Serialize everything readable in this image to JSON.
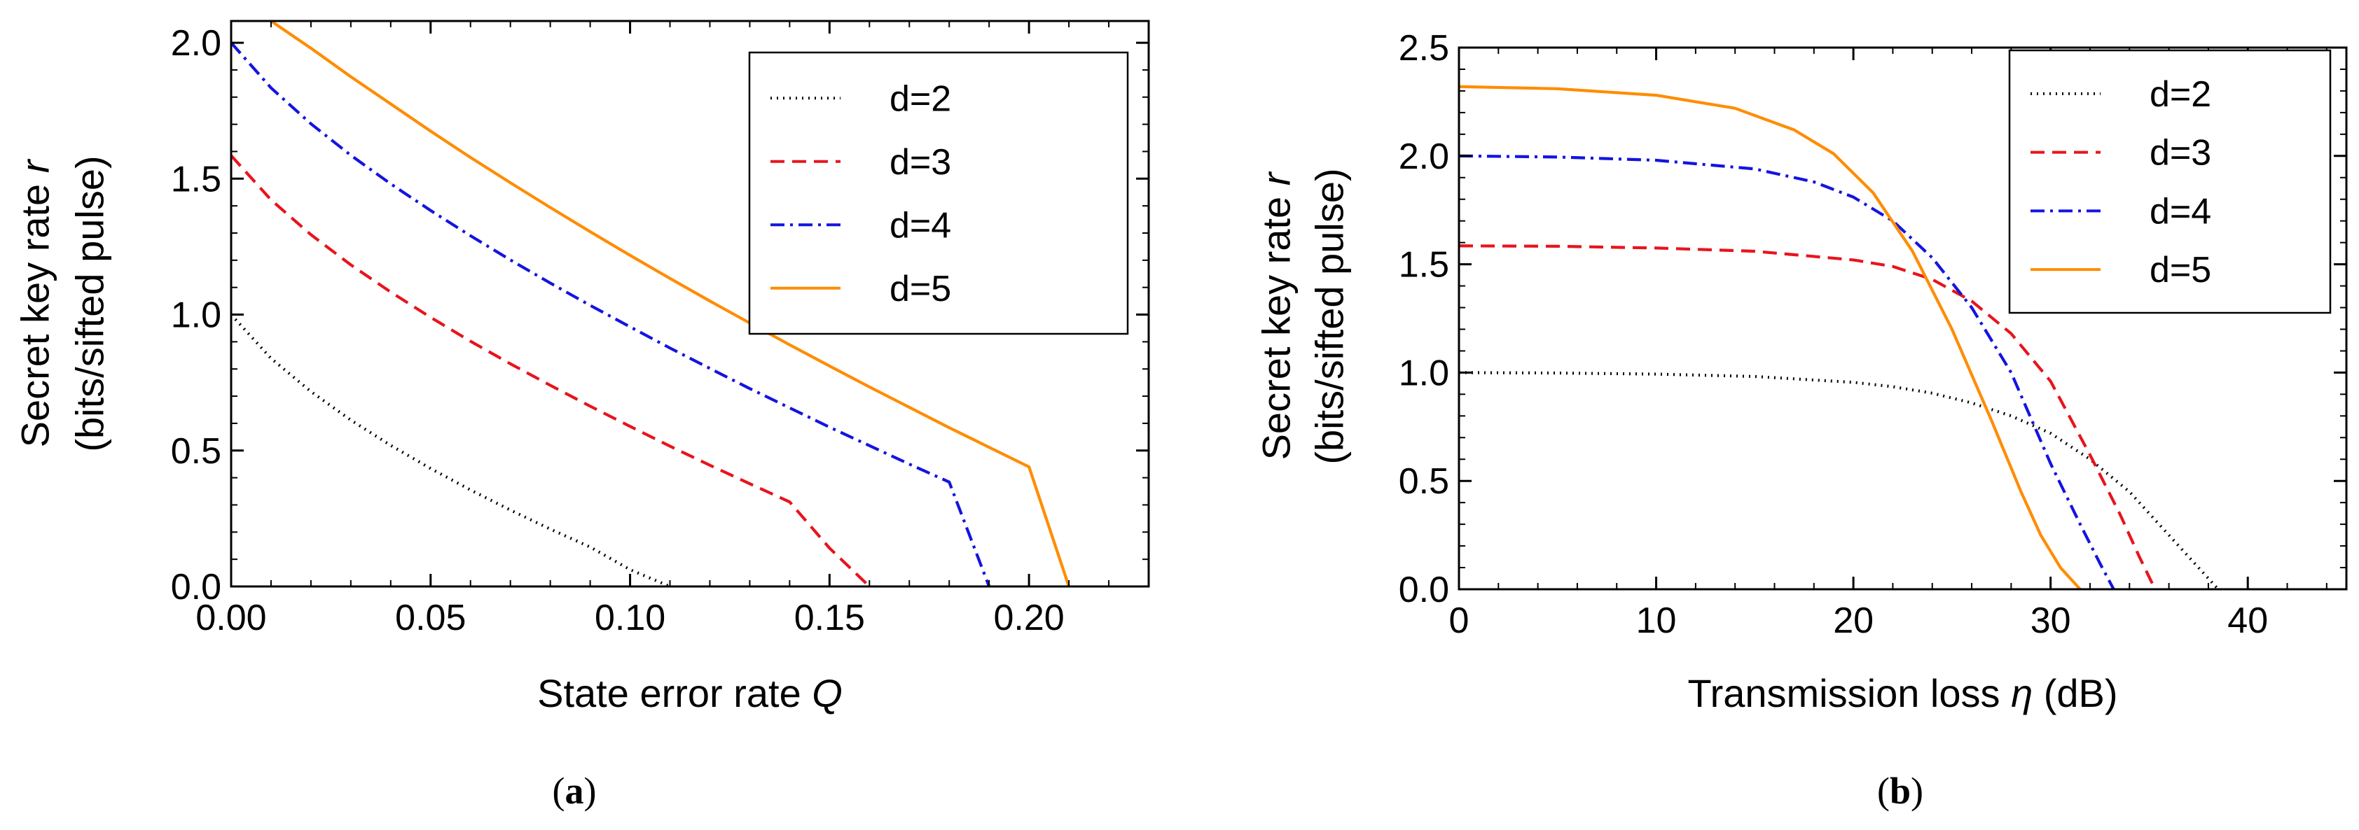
{
  "chart_data": [
    {
      "type": "line",
      "panel_label": "(a)",
      "xlabel_main": "State error rate ",
      "xlabel_symbol": "Q",
      "xlabel_suffix": "",
      "ylabel_line1": "Secret key rate ",
      "ylabel_symbol": "r",
      "ylabel_line2": "(bits/sifted pulse)",
      "xlim": [
        0,
        0.23
      ],
      "ylim": [
        0,
        2.08
      ],
      "xticks": [
        0,
        0.05,
        0.1,
        0.15,
        0.2
      ],
      "xtick_labels": [
        "0.00",
        "0.05",
        "0.10",
        "0.15",
        "0.20"
      ],
      "yticks": [
        0,
        0.5,
        1.0,
        1.5,
        2.0
      ],
      "ytick_labels": [
        "0.0",
        "0.5",
        "1.0",
        "1.5",
        "2.0"
      ],
      "legend_position": "top-right",
      "series": [
        {
          "name": "d=2",
          "color": "#000000",
          "dash": "dotted",
          "x": [
            0,
            0.01,
            0.02,
            0.03,
            0.04,
            0.05,
            0.06,
            0.07,
            0.08,
            0.09,
            0.1,
            0.11
          ],
          "y": [
            1.0,
            0.839,
            0.717,
            0.612,
            0.519,
            0.434,
            0.355,
            0.281,
            0.211,
            0.145,
            0.062,
            0.0
          ]
        },
        {
          "name": "d=3",
          "color": "#e8141c",
          "dash": "dashed",
          "x": [
            0,
            0.01,
            0.02,
            0.03,
            0.04,
            0.05,
            0.06,
            0.07,
            0.08,
            0.09,
            0.1,
            0.11,
            0.12,
            0.13,
            0.14,
            0.15,
            0.16
          ],
          "y": [
            1.585,
            1.422,
            1.294,
            1.183,
            1.083,
            0.99,
            0.902,
            0.819,
            0.74,
            0.663,
            0.589,
            0.516,
            0.446,
            0.378,
            0.311,
            0.141,
            0.0
          ]
        },
        {
          "name": "d=4",
          "color": "#1414e0",
          "dash": "dashdot",
          "x": [
            0,
            0.01,
            0.02,
            0.03,
            0.04,
            0.05,
            0.06,
            0.07,
            0.08,
            0.09,
            0.1,
            0.11,
            0.12,
            0.13,
            0.14,
            0.15,
            0.16,
            0.17,
            0.18,
            0.19
          ],
          "y": [
            2.0,
            1.834,
            1.702,
            1.586,
            1.481,
            1.383,
            1.29,
            1.201,
            1.116,
            1.034,
            0.955,
            0.877,
            0.802,
            0.728,
            0.657,
            0.586,
            0.518,
            0.45,
            0.384,
            0.0
          ]
        },
        {
          "name": "d=5",
          "color": "#ff8c00",
          "dash": "solid",
          "x": [
            0.01,
            0.02,
            0.03,
            0.04,
            0.05,
            0.06,
            0.07,
            0.08,
            0.09,
            0.1,
            0.11,
            0.12,
            0.13,
            0.14,
            0.15,
            0.16,
            0.17,
            0.18,
            0.19,
            0.2,
            0.21
          ],
          "y": [
            2.08,
            1.98,
            1.875,
            1.775,
            1.675,
            1.578,
            1.485,
            1.394,
            1.305,
            1.218,
            1.133,
            1.05,
            0.969,
            0.889,
            0.811,
            0.734,
            0.659,
            0.584,
            0.512,
            0.44,
            0.0
          ]
        }
      ]
    },
    {
      "type": "line",
      "panel_label": "(b)",
      "xlabel_main": "Transmission loss ",
      "xlabel_symbol": "η",
      "xlabel_suffix": " (dB)",
      "ylabel_line1": "Secret key rate ",
      "ylabel_symbol": "r",
      "ylabel_line2": "(bits/sifted pulse)",
      "xlim": [
        0,
        45
      ],
      "ylim": [
        0,
        2.5
      ],
      "xticks": [
        0,
        10,
        20,
        30,
        40
      ],
      "xtick_labels": [
        "0",
        "10",
        "20",
        "30",
        "40"
      ],
      "yticks": [
        0,
        0.5,
        1.0,
        1.5,
        2.0,
        2.5
      ],
      "ytick_labels": [
        "0.0",
        "0.5",
        "1.0",
        "1.5",
        "2.0",
        "2.5"
      ],
      "legend_position": "top-right",
      "series": [
        {
          "name": "d=2",
          "color": "#000000",
          "dash": "dotted",
          "x": [
            0,
            5,
            10,
            15,
            20,
            22,
            24,
            26,
            28,
            30,
            32,
            34,
            36,
            37.5,
            38.5
          ],
          "y": [
            1.0,
            0.998,
            0.993,
            0.982,
            0.955,
            0.935,
            0.905,
            0.86,
            0.8,
            0.72,
            0.6,
            0.45,
            0.25,
            0.1,
            0.0
          ]
        },
        {
          "name": "d=3",
          "color": "#e8141c",
          "dash": "dashed",
          "x": [
            0,
            5,
            10,
            15,
            20,
            22,
            24,
            26,
            28,
            30,
            32,
            33.5,
            34.5,
            35.3
          ],
          "y": [
            1.585,
            1.583,
            1.575,
            1.56,
            1.52,
            1.49,
            1.43,
            1.33,
            1.18,
            0.96,
            0.62,
            0.35,
            0.15,
            0.0
          ]
        },
        {
          "name": "d=4",
          "color": "#1414e0",
          "dash": "dashdot",
          "x": [
            0,
            5,
            10,
            15,
            18,
            20,
            22,
            24,
            26,
            28,
            30,
            31.5,
            32.5,
            33.2
          ],
          "y": [
            2.0,
            1.995,
            1.98,
            1.94,
            1.88,
            1.81,
            1.7,
            1.53,
            1.3,
            1.0,
            0.58,
            0.3,
            0.12,
            0.0
          ]
        },
        {
          "name": "d=5",
          "color": "#ff8c00",
          "dash": "solid",
          "x": [
            0,
            5,
            10,
            14,
            17,
            19,
            21,
            23,
            25,
            27,
            28.5,
            29.5,
            30.5,
            31.5
          ],
          "y": [
            2.32,
            2.31,
            2.28,
            2.22,
            2.12,
            2.01,
            1.83,
            1.56,
            1.2,
            0.78,
            0.45,
            0.25,
            0.1,
            0.0
          ]
        }
      ]
    }
  ]
}
